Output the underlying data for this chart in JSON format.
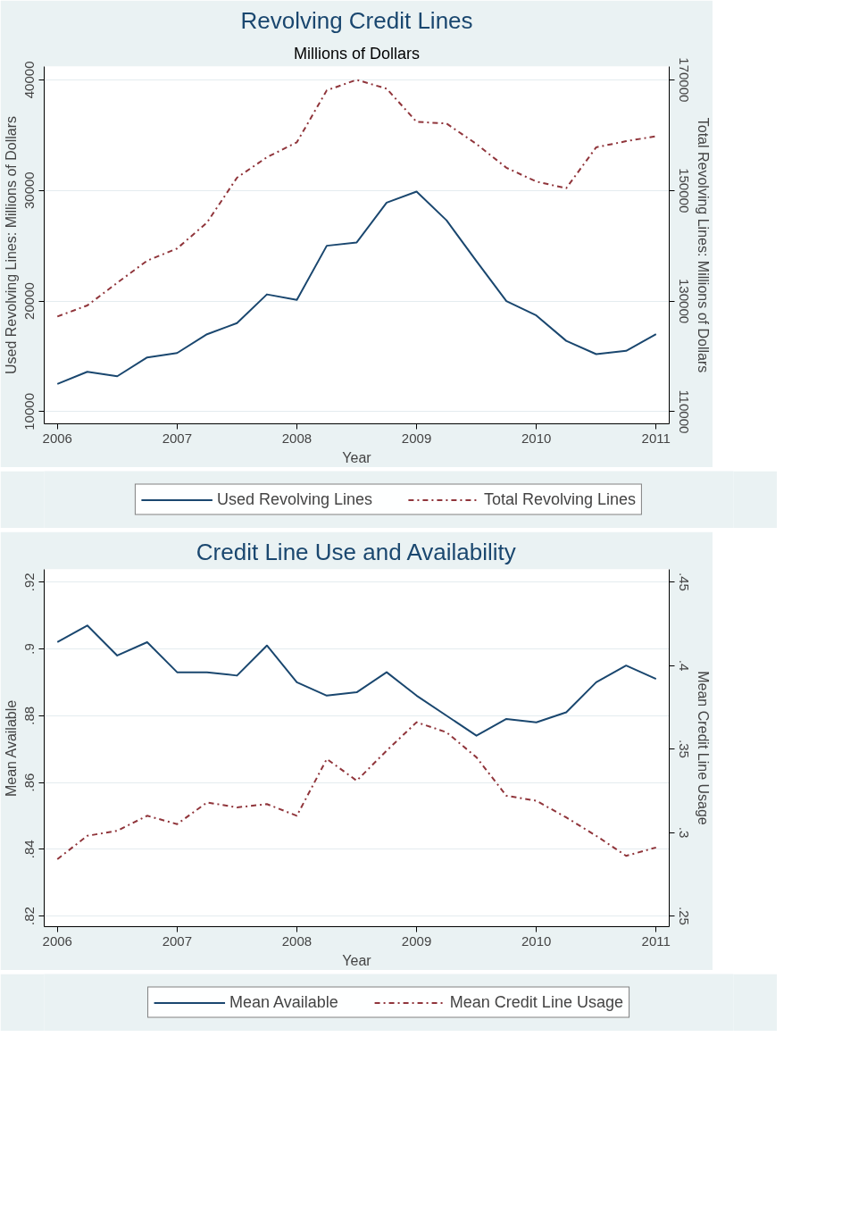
{
  "chart_data": [
    {
      "type": "line",
      "title": "Revolving Credit Lines",
      "subtitle": "Millions of Dollars",
      "xlabel": "Year",
      "ylabel": "Used Revolving Lines: Millions of Dollars",
      "y2label": "Total Revolving Lines: Millions of Dollars",
      "x": [
        2006,
        2006.25,
        2006.5,
        2006.75,
        2007,
        2007.25,
        2007.5,
        2007.75,
        2008,
        2008.25,
        2008.5,
        2008.75,
        2009,
        2009.25,
        2009.5,
        2009.75,
        2010,
        2010.25,
        2010.5,
        2010.75,
        2011
      ],
      "series": [
        {
          "name": "Used Revolving Lines",
          "color": "#1a476f",
          "line_style": "solid",
          "values": [
            12500,
            13600,
            13200,
            14900,
            15300,
            17000,
            18000,
            20600,
            20100,
            25000,
            25300,
            28900,
            29900,
            27300,
            23600,
            20000,
            18700,
            16400,
            15200,
            15500,
            17000
          ]
        },
        {
          "name": "Total Revolving Lines",
          "color": "#90353b",
          "line_style": "dashdot",
          "axis": "y2",
          "values": [
            127200,
            129200,
            133300,
            137300,
            139500,
            144200,
            152300,
            156000,
            158700,
            168100,
            170000,
            168400,
            162400,
            162100,
            158400,
            154100,
            151600,
            150400,
            157800,
            158900,
            159800
          ]
        }
      ],
      "xlim": [
        2005.89,
        2011.11
      ],
      "xticks": [
        2006,
        2007,
        2008,
        2009,
        2010,
        2011
      ],
      "ylim": [
        8900,
        41200
      ],
      "yticks": [
        10000,
        20000,
        30000,
        40000
      ],
      "y2lim": [
        107800,
        172400
      ],
      "y2ticks": [
        110000,
        130000,
        150000,
        170000
      ],
      "grid": "y",
      "legend": "bottom"
    },
    {
      "type": "line",
      "title": "Credit Line Use and Availability",
      "xlabel": "Year",
      "ylabel": "Mean Available",
      "y2label": "Mean Credit Line Usage",
      "x": [
        2006,
        2006.25,
        2006.5,
        2006.75,
        2007,
        2007.25,
        2007.5,
        2007.75,
        2008,
        2008.25,
        2008.5,
        2008.75,
        2009,
        2009.25,
        2009.5,
        2009.75,
        2010,
        2010.25,
        2010.5,
        2010.75,
        2011
      ],
      "series": [
        {
          "name": "Mean Available",
          "color": "#1a476f",
          "line_style": "solid",
          "values": [
            0.902,
            0.907,
            0.898,
            0.902,
            0.893,
            0.893,
            0.892,
            0.901,
            0.89,
            0.886,
            0.887,
            0.893,
            0.886,
            0.88,
            0.874,
            0.879,
            0.878,
            0.881,
            0.89,
            0.895,
            0.891
          ]
        },
        {
          "name": "Mean Credit Line Usage",
          "color": "#90353b",
          "line_style": "dashdot",
          "axis": "y2",
          "values": [
            0.284,
            0.298,
            0.301,
            0.31,
            0.305,
            0.318,
            0.315,
            0.317,
            0.31,
            0.344,
            0.331,
            0.349,
            0.366,
            0.36,
            0.345,
            0.322,
            0.319,
            0.309,
            0.298,
            0.286,
            0.291
          ]
        }
      ],
      "xlim": [
        2005.89,
        2011.11
      ],
      "xticks": [
        2006,
        2007,
        2008,
        2009,
        2010,
        2011
      ],
      "ylim": [
        0.8168,
        0.9238
      ],
      "yticks": [
        {
          "value": 0.82,
          "label": ".82"
        },
        {
          "value": 0.84,
          "label": ".84"
        },
        {
          "value": 0.86,
          "label": ".86"
        },
        {
          "value": 0.88,
          "label": ".88"
        },
        {
          "value": 0.9,
          "label": ".9"
        },
        {
          "value": 0.92,
          "label": ".92"
        }
      ],
      "y2lim": [
        0.2436,
        0.4575
      ],
      "y2ticks": [
        {
          "value": 0.25,
          "label": ".25"
        },
        {
          "value": 0.3,
          "label": ".3"
        },
        {
          "value": 0.35,
          "label": ".35"
        },
        {
          "value": 0.4,
          "label": ".4"
        },
        {
          "value": 0.45,
          "label": ".45"
        }
      ],
      "grid": "y",
      "legend": "bottom"
    }
  ]
}
